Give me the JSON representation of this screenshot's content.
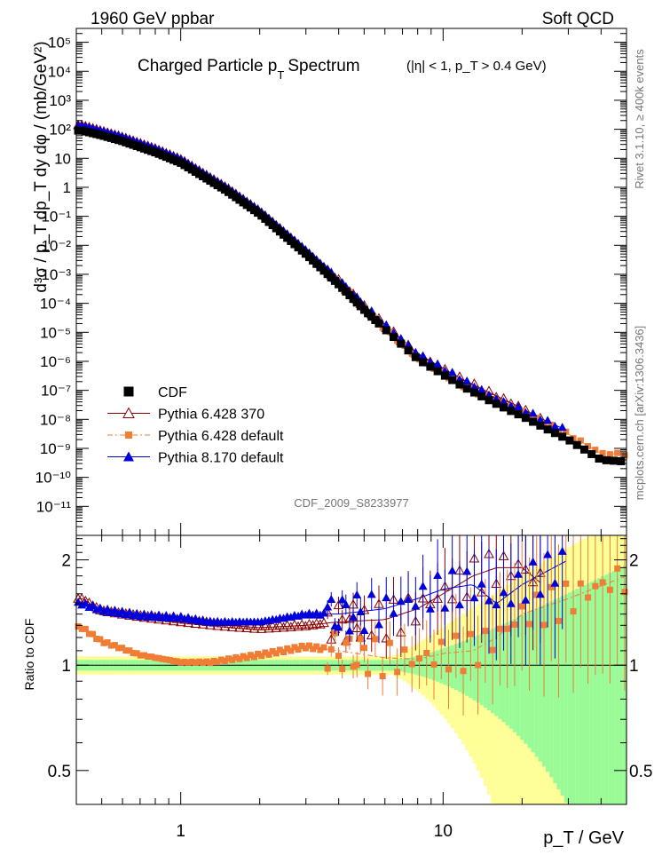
{
  "header": {
    "energy_label": "1960 GeV ppbar",
    "category_label": "Soft QCD"
  },
  "side_labels": {
    "rivet": "Rivet 3.1.10, ≥ 400k events",
    "mcplots": "mcplots.cern.ch [arXiv:1306.3436]"
  },
  "chart_data": {
    "type": "scatter",
    "title": "Charged Particle p_T Spectrum",
    "title_main": "Charged Particle p",
    "title_sub": "T",
    "title_suffix": "Spectrum",
    "cuts_label": "(|η| < 1, p_T > 0.4 GeV)",
    "analysis_id": "CDF_2009_S8233977",
    "xlabel": "p_T / GeV",
    "ylabel": "d³σ / p_T dp_T dy dφ / (mb/GeV²)",
    "ratio_ylabel": "Ratio to CDF",
    "x_scale": "log",
    "xlim": [
      0.4,
      50
    ],
    "ylim": [
      1e-12,
      300000.0
    ],
    "ratio_ylim": [
      0.4,
      2.35
    ],
    "x_ticks": [
      1,
      10
    ],
    "y_ticks": [
      1e-11,
      1e-10,
      1e-09,
      1e-08,
      1e-07,
      1e-06,
      1e-05,
      0.0001,
      0.001,
      0.01,
      0.1,
      1,
      10,
      100,
      1000.0,
      10000.0,
      100000.0
    ],
    "ratio_ticks": [
      0.5,
      1,
      2
    ],
    "legend_position": "bottom-left",
    "legend": [
      {
        "name": "CDF",
        "color": "#000000",
        "marker": "square"
      },
      {
        "name": "Pythia 6.428 370",
        "color": "#8b0000",
        "marker": "open-triangle"
      },
      {
        "name": "Pythia 6.428 default",
        "color": "#f07d35",
        "marker": "square-dashdot"
      },
      {
        "name": "Pythia 8.170 default",
        "color": "#0000dd",
        "marker": "triangle"
      }
    ],
    "reference": {
      "name": "CDF",
      "x": [
        0.42,
        0.5,
        0.6,
        0.8,
        1.0,
        1.5,
        2.0,
        3.0,
        4.0,
        5.0,
        6.0,
        8.0,
        10.0,
        12.0,
        15.0,
        18.0,
        20.0,
        25.0,
        30.0,
        40.0,
        50.0
      ],
      "y": [
        90,
        62,
        39,
        16,
        7.0,
        0.75,
        0.12,
        0.005,
        0.00045,
        6e-05,
        1.3e-05,
        1.2e-06,
        3.5e-07,
        1.3e-07,
        4.5e-08,
        2e-08,
        1.3e-08,
        4.5e-09,
        2e-09,
        4e-10,
        3.5e-10
      ]
    },
    "series": [
      {
        "name": "Pythia 6.428 370",
        "ratio": [
          [
            0.42,
            1.55
          ],
          [
            0.5,
            1.43
          ],
          [
            0.7,
            1.38
          ],
          [
            1.0,
            1.34
          ],
          [
            1.5,
            1.3
          ],
          [
            2.0,
            1.28
          ],
          [
            3.0,
            1.3
          ],
          [
            4.0,
            1.33
          ],
          [
            6.0,
            1.35
          ],
          [
            8.0,
            1.45
          ],
          [
            10.0,
            1.6
          ],
          [
            13.0,
            1.8
          ],
          [
            16.0,
            1.9
          ],
          [
            20.0,
            1.9
          ],
          [
            24.0,
            1.7
          ]
        ]
      },
      {
        "name": "Pythia 6.428 default",
        "ratio": [
          [
            0.42,
            1.28
          ],
          [
            0.5,
            1.17
          ],
          [
            0.7,
            1.07
          ],
          [
            1.0,
            1.02
          ],
          [
            1.3,
            1.02
          ],
          [
            2.0,
            1.07
          ],
          [
            3.0,
            1.13
          ],
          [
            4.0,
            1.1
          ],
          [
            6.0,
            1.05
          ],
          [
            8.0,
            1.04
          ],
          [
            10.0,
            1.08
          ],
          [
            13.0,
            1.1
          ],
          [
            16.0,
            1.2
          ],
          [
            20.0,
            1.4
          ],
          [
            30.0,
            1.55
          ],
          [
            50.0,
            1.8
          ]
        ]
      },
      {
        "name": "Pythia 8.170 default",
        "ratio": [
          [
            0.42,
            1.5
          ],
          [
            0.5,
            1.44
          ],
          [
            0.7,
            1.39
          ],
          [
            1.0,
            1.37
          ],
          [
            1.3,
            1.33
          ],
          [
            2.0,
            1.33
          ],
          [
            3.0,
            1.4
          ],
          [
            4.0,
            1.4
          ],
          [
            6.0,
            1.45
          ],
          [
            8.0,
            1.55
          ],
          [
            10.0,
            1.65
          ],
          [
            13.0,
            1.7
          ],
          [
            16.0,
            1.5
          ],
          [
            20.0,
            1.7
          ],
          [
            30.0,
            2.0
          ]
        ]
      }
    ]
  }
}
